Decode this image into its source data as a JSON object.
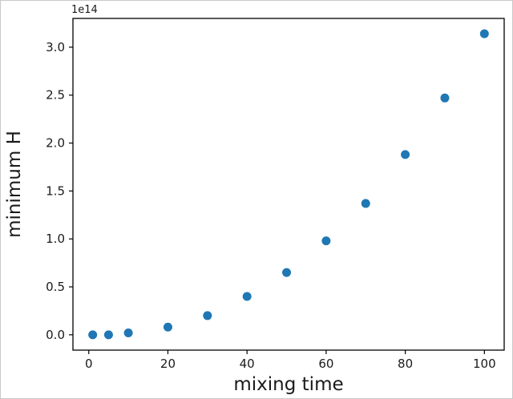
{
  "figure": {
    "kind": "matplotlib-style scatter figure",
    "background": "#ffffff"
  },
  "chart_data": {
    "type": "scatter",
    "title": "",
    "xlabel": "mixing time",
    "ylabel": "minimum H",
    "y_offset_text": "1e14",
    "y_scale": 100000000000000.0,
    "x": [
      1,
      5,
      10,
      20,
      30,
      40,
      50,
      60,
      70,
      80,
      90,
      100
    ],
    "y": [
      0.0,
      0.0,
      0.02,
      0.08,
      0.2,
      0.4,
      0.65,
      0.98,
      1.37,
      1.88,
      2.47,
      3.14
    ],
    "xlim": [
      -4,
      105
    ],
    "ylim": [
      -0.16,
      3.3
    ],
    "xticks": [
      0,
      20,
      40,
      60,
      80,
      100
    ],
    "xtick_labels": [
      "0",
      "20",
      "40",
      "60",
      "80",
      "100"
    ],
    "yticks": [
      0.0,
      0.5,
      1.0,
      1.5,
      2.0,
      2.5,
      3.0
    ],
    "ytick_labels": [
      "0.0",
      "0.5",
      "1.0",
      "1.5",
      "2.0",
      "2.5",
      "3.0"
    ],
    "grid": false,
    "legend": null,
    "marker_color": "#1f77b4",
    "marker_radius_px": 5.5
  }
}
